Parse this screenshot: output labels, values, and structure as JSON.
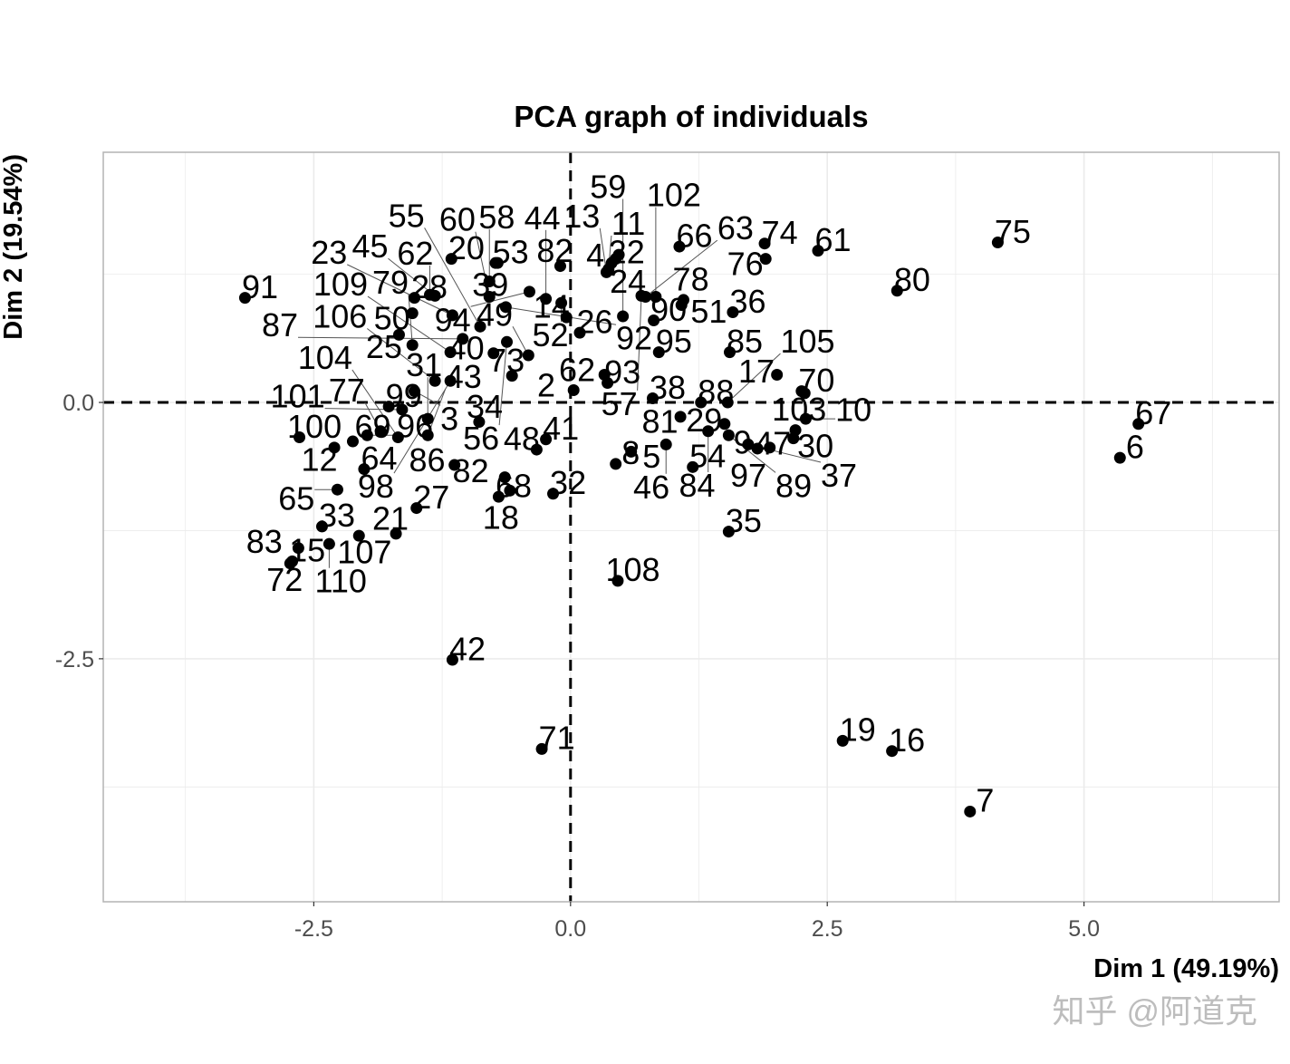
{
  "chart_data": {
    "type": "scatter",
    "title": "PCA graph of individuals",
    "xlabel": "Dim 1 (49.19%)",
    "ylabel": "Dim 2 (19.54%)",
    "xlim": [
      -4.55,
      6.9
    ],
    "ylim": [
      -4.87,
      2.44
    ],
    "x_ticks": [
      -2.5,
      0.0,
      2.5,
      5.0
    ],
    "x_tick_labels": [
      "-2.5",
      "0.0",
      "2.5",
      "5.0"
    ],
    "y_ticks": [
      0.0,
      -2.5
    ],
    "y_tick_labels": [
      "0.0",
      "-2.5"
    ],
    "grid": true,
    "reference_lines": {
      "x": 0,
      "y": 0,
      "style": "dashed"
    },
    "point_color": "#000000",
    "points": [
      {
        "label": "91",
        "x": -3.17,
        "y": 1.02
      },
      {
        "label": "20",
        "x": -1.16,
        "y": 1.4
      },
      {
        "label": "53",
        "x": -0.73,
        "y": 1.36
      },
      {
        "label": "82",
        "x": -0.1,
        "y": 1.33
      },
      {
        "label": "28",
        "x": -1.52,
        "y": 1.02
      },
      {
        "label": "62",
        "x": -1.37,
        "y": 1.05
      },
      {
        "label": "45",
        "x": -1.32,
        "y": 1.04
      },
      {
        "label": "58",
        "x": -0.79,
        "y": 1.18
      },
      {
        "label": "39",
        "x": -0.71,
        "y": 1.36
      },
      {
        "label": "60",
        "x": -0.79,
        "y": 1.03
      },
      {
        "label": "94",
        "x": -0.4,
        "y": 1.08
      },
      {
        "label": "44",
        "x": -0.24,
        "y": 1.01
      },
      {
        "label": "52",
        "x": -0.09,
        "y": 0.97
      },
      {
        "label": "50",
        "x": -1.54,
        "y": 0.87
      },
      {
        "label": "25",
        "x": -1.67,
        "y": 0.66
      },
      {
        "label": "23",
        "x": -1.15,
        "y": 0.85
      },
      {
        "label": "92",
        "x": -0.63,
        "y": 0.93
      },
      {
        "label": "55",
        "x": -0.88,
        "y": 0.74
      },
      {
        "label": "56",
        "x": -0.62,
        "y": 0.59
      },
      {
        "label": "40",
        "x": -0.75,
        "y": 0.48
      },
      {
        "label": "49",
        "x": -0.41,
        "y": 0.46
      },
      {
        "label": "14",
        "x": -0.04,
        "y": 0.83
      },
      {
        "label": "26",
        "x": 0.09,
        "y": 0.68
      },
      {
        "label": "62",
        "x": 0.33,
        "y": 0.27
      },
      {
        "label": "93",
        "x": 0.36,
        "y": 0.19
      },
      {
        "label": "95",
        "x": 0.86,
        "y": 0.49
      },
      {
        "label": "2",
        "x": 0.03,
        "y": 0.12
      },
      {
        "label": "38",
        "x": 0.8,
        "y": 0.04
      },
      {
        "label": "24",
        "x": 0.47,
        "y": 1.44
      },
      {
        "label": "22",
        "x": 0.4,
        "y": 1.36
      },
      {
        "label": "4",
        "x": 0.44,
        "y": 1.4
      },
      {
        "label": "11",
        "x": 0.37,
        "y": 1.3
      },
      {
        "label": "13",
        "x": 0.35,
        "y": 1.27
      },
      {
        "label": "66",
        "x": 1.06,
        "y": 1.52
      },
      {
        "label": "74",
        "x": 1.89,
        "y": 1.55
      },
      {
        "label": "76",
        "x": 1.9,
        "y": 1.4
      },
      {
        "label": "61",
        "x": 2.41,
        "y": 1.48
      },
      {
        "label": "75",
        "x": 4.16,
        "y": 1.56
      },
      {
        "label": "80",
        "x": 3.18,
        "y": 1.09
      },
      {
        "label": "63",
        "x": 0.73,
        "y": 1.03
      },
      {
        "label": "102",
        "x": 0.83,
        "y": 1.03
      },
      {
        "label": "57",
        "x": 0.69,
        "y": 1.04
      },
      {
        "label": "51",
        "x": 1.08,
        "y": 0.95
      },
      {
        "label": "78",
        "x": 1.1,
        "y": 1.0
      },
      {
        "label": "59",
        "x": 0.51,
        "y": 0.84
      },
      {
        "label": "36",
        "x": 1.58,
        "y": 0.88
      },
      {
        "label": "90",
        "x": 0.81,
        "y": 0.8
      },
      {
        "label": "85",
        "x": 1.55,
        "y": 0.49
      },
      {
        "label": "17",
        "x": 2.01,
        "y": 0.27
      },
      {
        "label": "70",
        "x": 2.25,
        "y": 0.11
      },
      {
        "label": "103",
        "x": 2.28,
        "y": 0.09
      },
      {
        "label": "88",
        "x": 1.27,
        "y": 0.0
      },
      {
        "label": "105",
        "x": 1.53,
        "y": 0.0
      },
      {
        "label": "81",
        "x": 1.07,
        "y": -0.14
      },
      {
        "label": "84",
        "x": 1.34,
        "y": -0.28
      },
      {
        "label": "29",
        "x": 1.5,
        "y": -0.21
      },
      {
        "label": "89",
        "x": 1.54,
        "y": -0.32
      },
      {
        "label": "37",
        "x": 1.73,
        "y": -0.41
      },
      {
        "label": "97",
        "x": 1.82,
        "y": -0.45
      },
      {
        "label": "9",
        "x": 1.94,
        "y": -0.44
      },
      {
        "label": "30",
        "x": 2.19,
        "y": -0.27
      },
      {
        "label": "47",
        "x": 2.17,
        "y": -0.35
      },
      {
        "label": "10",
        "x": 2.29,
        "y": -0.16
      },
      {
        "label": "46",
        "x": 0.93,
        "y": -0.41
      },
      {
        "label": "54",
        "x": 1.19,
        "y": -0.63
      },
      {
        "label": "5",
        "x": 0.59,
        "y": -0.48
      },
      {
        "label": "8",
        "x": 0.44,
        "y": -0.6
      },
      {
        "label": "35",
        "x": 1.54,
        "y": -1.26
      },
      {
        "label": "108",
        "x": 0.46,
        "y": -1.74
      },
      {
        "label": "42",
        "x": -1.15,
        "y": -2.51
      },
      {
        "label": "71",
        "x": -0.28,
        "y": -3.38
      },
      {
        "label": "19",
        "x": 2.65,
        "y": -3.3
      },
      {
        "label": "16",
        "x": 3.13,
        "y": -3.4
      },
      {
        "label": "7",
        "x": 3.89,
        "y": -3.99
      },
      {
        "label": "67",
        "x": 5.53,
        "y": -0.21
      },
      {
        "label": "6",
        "x": 5.35,
        "y": -0.54
      },
      {
        "label": "100",
        "x": -2.64,
        "y": -0.34
      },
      {
        "label": "12",
        "x": -2.3,
        "y": -0.44
      },
      {
        "label": "69",
        "x": -2.12,
        "y": -0.38
      },
      {
        "label": "96",
        "x": -1.98,
        "y": -0.32
      },
      {
        "label": "77",
        "x": -1.85,
        "y": -0.28
      },
      {
        "label": "104",
        "x": -1.68,
        "y": -0.34
      },
      {
        "label": "43",
        "x": -1.39,
        "y": -0.32
      },
      {
        "label": "34",
        "x": -0.89,
        "y": -0.19
      },
      {
        "label": "101",
        "x": -1.64,
        "y": -0.07
      },
      {
        "label": "99",
        "x": -1.77,
        "y": -0.04
      },
      {
        "label": "31",
        "x": -1.39,
        "y": -0.16
      },
      {
        "label": "65",
        "x": -2.27,
        "y": -0.85
      },
      {
        "label": "64",
        "x": -2.01,
        "y": -0.65
      },
      {
        "label": "33",
        "x": -2.42,
        "y": -1.21
      },
      {
        "label": "86",
        "x": -1.13,
        "y": -0.61
      },
      {
        "label": "27",
        "x": -1.5,
        "y": -1.03
      },
      {
        "label": "21",
        "x": -1.7,
        "y": -1.28
      },
      {
        "label": "18",
        "x": -0.59,
        "y": -0.86
      },
      {
        "label": "68",
        "x": -0.7,
        "y": -0.92
      },
      {
        "label": "32",
        "x": -0.17,
        "y": -0.89
      },
      {
        "label": "82",
        "x": -0.64,
        "y": -0.73
      },
      {
        "label": "41",
        "x": -0.24,
        "y": -0.36
      },
      {
        "label": "48",
        "x": -0.33,
        "y": -0.46
      },
      {
        "label": "83",
        "x": -2.65,
        "y": -1.42
      },
      {
        "label": "107",
        "x": -2.06,
        "y": -1.3
      },
      {
        "label": "110",
        "x": -2.35,
        "y": -1.38
      },
      {
        "label": "15",
        "x": -2.71,
        "y": -1.55
      },
      {
        "label": "72",
        "x": -2.73,
        "y": -1.57
      },
      {
        "label": "3",
        "x": -1.52,
        "y": 0.11
      },
      {
        "label": "98",
        "x": -1.17,
        "y": 0.21
      },
      {
        "label": "106",
        "x": -1.32,
        "y": 0.21
      },
      {
        "label": "109",
        "x": -1.17,
        "y": 0.49
      },
      {
        "label": "73",
        "x": -0.57,
        "y": 0.26
      },
      {
        "label": "79",
        "x": -1.54,
        "y": 0.56
      },
      {
        "label": "87",
        "x": -1.05,
        "y": 0.62
      }
    ]
  },
  "watermark": "知乎 @阿道克"
}
